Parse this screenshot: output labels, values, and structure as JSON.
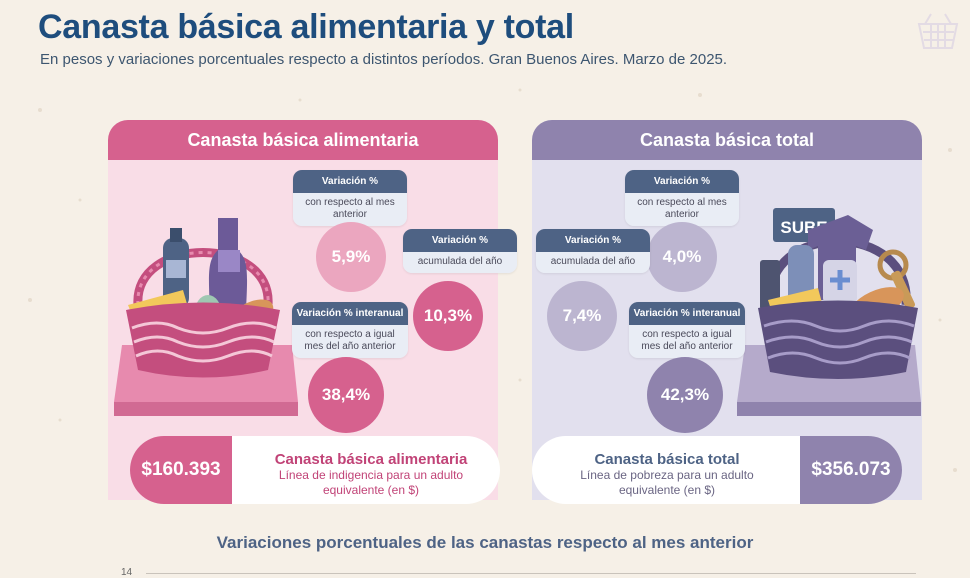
{
  "title": "Canasta básica alimentaria y total",
  "subtitle": "En pesos y variaciones porcentuales respecto a distintos períodos. Gran Buenos Aires. Marzo de 2025.",
  "cba": {
    "header": "Canasta básica alimentaria",
    "monthly": {
      "label": "Variación %",
      "desc": "con respecto al mes anterior",
      "value": "5,9%"
    },
    "ytd": {
      "label": "Variación %",
      "desc": "acumulada del año",
      "value": "10,3%"
    },
    "yoy": {
      "label": "Variación % interanual",
      "desc": "con respecto a igual mes del año anterior",
      "value": "38,4%"
    },
    "amount": "$160.393",
    "name": "Canasta básica alimentaria",
    "desc": "Línea de indigencia para un adulto equivalente (en $)"
  },
  "cbt": {
    "header": "Canasta básica total",
    "monthly": {
      "label": "Variación %",
      "desc": "con respecto al mes anterior",
      "value": "4,0%"
    },
    "ytd": {
      "label": "Variación %",
      "desc": "acumulada del año",
      "value": "7,4%"
    },
    "yoy": {
      "label": "Variación % interanual",
      "desc": "con respecto a igual mes del año anterior",
      "value": "42,3%"
    },
    "amount": "$356.073",
    "name": "Canasta básica total",
    "desc": "Línea de pobreza para un adulto equivalente (en $)"
  },
  "chart_section": {
    "title": "Variaciones porcentuales de las canastas respecto al mes anterior",
    "first_tick": "14"
  },
  "colors": {
    "title": "#1e4d7d",
    "food": "#d6618e",
    "total": "#8f83ad",
    "tag": "#4e6385"
  },
  "icons": {
    "logo": "basket-outline-icon",
    "cba_illustration": "food-basket-icon",
    "cbt_illustration": "goods-basket-icon"
  }
}
